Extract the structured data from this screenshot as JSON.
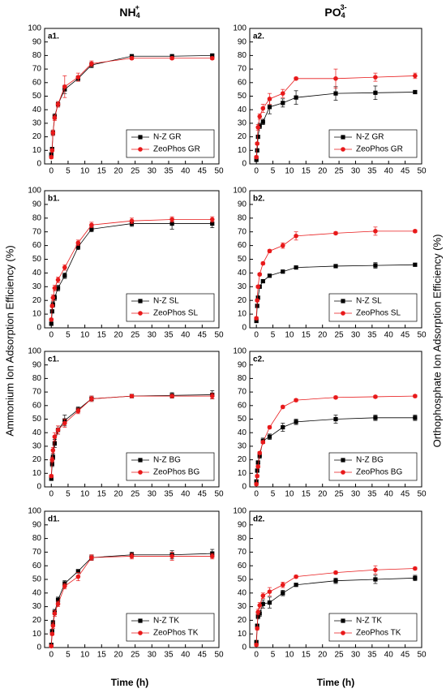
{
  "column_titles": [
    {
      "text": "NH",
      "sub": "4",
      "sup": "+"
    },
    {
      "text": "PO",
      "sub": "4",
      "sup": "3-"
    }
  ],
  "y_labels": [
    "Ammonium Ion Adsorption Efficiency (%)",
    "Orthophosphate Ion Adsorption Efficiency (%)"
  ],
  "x_label": "Time (h)",
  "chart_data": [
    {
      "type": "line",
      "label": "a1.",
      "x": [
        0,
        0.25,
        0.5,
        1,
        2,
        4,
        8,
        12,
        24,
        36,
        48
      ],
      "xlim": [
        -2,
        50
      ],
      "xticks": [
        0,
        5,
        10,
        15,
        20,
        25,
        30,
        35,
        40,
        45,
        50
      ],
      "ylim": [
        0,
        100
      ],
      "yticks": [
        0,
        10,
        20,
        30,
        40,
        50,
        60,
        70,
        80,
        90,
        100
      ],
      "legend": "lower right",
      "series": [
        {
          "name": "N-Z  GR",
          "color": "#000000",
          "marker": "square",
          "values": [
            7,
            11,
            23,
            35,
            44,
            55,
            63,
            73,
            79.5,
            79.5,
            80
          ],
          "errors": [
            1,
            1,
            2,
            2,
            2,
            3,
            2,
            2,
            1,
            1,
            1
          ]
        },
        {
          "name": "ZeoPhos GR",
          "color": "#e8191a",
          "marker": "circle",
          "values": [
            5,
            10,
            23,
            34,
            44,
            57,
            64,
            74,
            78,
            78,
            78
          ],
          "errors": [
            1,
            1,
            2,
            2,
            2,
            8,
            3,
            2,
            1,
            1,
            1
          ]
        }
      ]
    },
    {
      "type": "line",
      "label": "a2.",
      "x": [
        0,
        0.25,
        0.5,
        1,
        2,
        4,
        8,
        12,
        24,
        36,
        48
      ],
      "xlim": [
        -2,
        50
      ],
      "xticks": [
        0,
        5,
        10,
        15,
        20,
        25,
        30,
        35,
        40,
        45,
        50
      ],
      "ylim": [
        0,
        100
      ],
      "yticks": [
        0,
        10,
        20,
        30,
        40,
        50,
        60,
        70,
        80,
        90,
        100
      ],
      "legend": "lower right",
      "series": [
        {
          "name": "N-Z  GR",
          "color": "#000000",
          "marker": "square",
          "values": [
            3,
            10,
            20,
            28,
            31,
            42,
            45,
            49,
            52,
            52.5,
            53
          ],
          "errors": [
            1,
            1,
            1,
            2,
            2,
            5,
            3,
            5,
            5,
            5,
            1
          ]
        },
        {
          "name": "ZeoPhos GR",
          "color": "#e8191a",
          "marker": "circle",
          "values": [
            5,
            15,
            27,
            35,
            41,
            48,
            52,
            63,
            63,
            64,
            65
          ],
          "errors": [
            1,
            1,
            2,
            2,
            3,
            4,
            3,
            1,
            7,
            3,
            2
          ]
        }
      ]
    },
    {
      "type": "line",
      "label": "b1.",
      "x": [
        0,
        0.25,
        0.5,
        1,
        2,
        4,
        8,
        12,
        24,
        36,
        48
      ],
      "xlim": [
        -2,
        50
      ],
      "xticks": [
        0,
        5,
        10,
        15,
        20,
        25,
        30,
        35,
        40,
        45,
        50
      ],
      "ylim": [
        0,
        100
      ],
      "yticks": [
        0,
        10,
        20,
        30,
        40,
        50,
        60,
        70,
        80,
        90,
        100
      ],
      "legend": "lower right",
      "series": [
        {
          "name": "N-Z SL",
          "color": "#000000",
          "marker": "square",
          "values": [
            3,
            12,
            17,
            22,
            29,
            38,
            59,
            72,
            76,
            76,
            76
          ],
          "errors": [
            1,
            1,
            2,
            2,
            2,
            2,
            2,
            2,
            2,
            4,
            3
          ]
        },
        {
          "name": "ZeoPhos SL",
          "color": "#e8191a",
          "marker": "circle",
          "values": [
            6,
            16,
            22,
            29,
            35,
            44,
            62,
            75,
            78,
            79,
            79
          ],
          "errors": [
            1,
            1,
            2,
            2,
            2,
            2,
            2,
            2,
            2,
            2,
            2
          ]
        }
      ]
    },
    {
      "type": "line",
      "label": "b2.",
      "x": [
        0,
        0.25,
        0.5,
        1,
        2,
        4,
        8,
        12,
        24,
        36,
        48
      ],
      "xlim": [
        -2,
        50
      ],
      "xticks": [
        0,
        5,
        10,
        15,
        20,
        25,
        30,
        35,
        40,
        45,
        50
      ],
      "ylim": [
        0,
        100
      ],
      "yticks": [
        0,
        10,
        20,
        30,
        40,
        50,
        60,
        70,
        80,
        90,
        100
      ],
      "legend": "lower right",
      "series": [
        {
          "name": "N-Z SL",
          "color": "#000000",
          "marker": "square",
          "values": [
            5,
            16,
            22,
            30,
            34,
            38,
            41,
            44,
            45,
            45.5,
            46
          ],
          "errors": [
            1,
            1,
            1,
            1,
            1,
            1,
            1,
            1,
            1,
            2,
            1
          ]
        },
        {
          "name": "ZeoPhos SL",
          "color": "#e8191a",
          "marker": "circle",
          "values": [
            7,
            20,
            30,
            39,
            47,
            56,
            60,
            67,
            69,
            70.5,
            70.5
          ],
          "errors": [
            1,
            1,
            1,
            1,
            1,
            1,
            2,
            3,
            1,
            3,
            1
          ]
        }
      ]
    },
    {
      "type": "line",
      "label": "c1.",
      "x": [
        0,
        0.25,
        0.5,
        1,
        2,
        4,
        8,
        12,
        24,
        36,
        48
      ],
      "xlim": [
        -2,
        50
      ],
      "xticks": [
        0,
        5,
        10,
        15,
        20,
        25,
        30,
        35,
        40,
        45,
        50
      ],
      "ylim": [
        0,
        100
      ],
      "yticks": [
        0,
        10,
        20,
        30,
        40,
        50,
        60,
        70,
        80,
        90,
        100
      ],
      "legend": "lower right",
      "series": [
        {
          "name": "N-Z  BG",
          "color": "#000000",
          "marker": "square",
          "values": [
            6,
            17,
            22,
            32,
            42,
            49,
            57,
            65,
            67,
            67.5,
            68
          ],
          "errors": [
            1,
            2,
            2,
            3,
            3,
            4,
            2,
            2,
            1,
            2,
            3
          ]
        },
        {
          "name": "ZeoPhos BG",
          "color": "#e8191a",
          "marker": "circle",
          "values": [
            8,
            20,
            27,
            37,
            42,
            47,
            56,
            65,
            67,
            67,
            67
          ],
          "errors": [
            1,
            2,
            2,
            3,
            3,
            3,
            2,
            2,
            1,
            1,
            2
          ]
        }
      ]
    },
    {
      "type": "line",
      "label": "c2.",
      "x": [
        0,
        0.25,
        0.5,
        1,
        2,
        4,
        8,
        12,
        24,
        36,
        48
      ],
      "xlim": [
        -2,
        50
      ],
      "xticks": [
        0,
        5,
        10,
        15,
        20,
        25,
        30,
        35,
        40,
        45,
        50
      ],
      "ylim": [
        0,
        100
      ],
      "yticks": [
        0,
        10,
        20,
        30,
        40,
        50,
        60,
        70,
        80,
        90,
        100
      ],
      "legend": "lower right",
      "series": [
        {
          "name": "N-Z  BG",
          "color": "#000000",
          "marker": "square",
          "values": [
            4,
            12,
            18,
            23,
            34,
            37,
            44,
            48,
            50,
            51,
            51
          ],
          "errors": [
            1,
            1,
            1,
            2,
            2,
            2,
            3,
            2,
            3,
            2,
            2
          ]
        },
        {
          "name": "ZeoPhos BG",
          "color": "#e8191a",
          "marker": "circle",
          "values": [
            2,
            8,
            15,
            25,
            33,
            44,
            59,
            64,
            66,
            66.5,
            67
          ],
          "errors": [
            1,
            1,
            1,
            1,
            1,
            1,
            1,
            1,
            1,
            1,
            1
          ]
        }
      ]
    },
    {
      "type": "line",
      "label": "d1.",
      "x": [
        0,
        0.25,
        0.5,
        1,
        2,
        4,
        8,
        12,
        24,
        36,
        48
      ],
      "xlim": [
        -2,
        50
      ],
      "xticks": [
        0,
        5,
        10,
        15,
        20,
        25,
        30,
        35,
        40,
        45,
        50
      ],
      "ylim": [
        0,
        100
      ],
      "yticks": [
        0,
        10,
        20,
        30,
        40,
        50,
        60,
        70,
        80,
        90,
        100
      ],
      "legend": "lower right",
      "series": [
        {
          "name": "N-Z  TK",
          "color": "#000000",
          "marker": "square",
          "values": [
            2,
            12,
            18,
            26,
            35,
            47,
            56,
            66,
            68,
            68,
            69
          ],
          "errors": [
            1,
            1,
            2,
            2,
            2,
            2,
            1,
            2,
            2,
            3,
            3
          ]
        },
        {
          "name": "ZeoPhos TK",
          "color": "#e8191a",
          "marker": "circle",
          "values": [
            1,
            10,
            16,
            25,
            32,
            45,
            52,
            66,
            67,
            67,
            67
          ],
          "errors": [
            1,
            1,
            2,
            2,
            2,
            2,
            3,
            2,
            2,
            3,
            2
          ]
        }
      ]
    },
    {
      "type": "line",
      "label": "d2.",
      "x": [
        0,
        0.25,
        0.5,
        1,
        2,
        4,
        8,
        12,
        24,
        36,
        48
      ],
      "xlim": [
        -2,
        50
      ],
      "xticks": [
        0,
        5,
        10,
        15,
        20,
        25,
        30,
        35,
        40,
        45,
        50
      ],
      "ylim": [
        0,
        100
      ],
      "yticks": [
        0,
        10,
        20,
        30,
        40,
        50,
        60,
        70,
        80,
        90,
        100
      ],
      "legend": "lower right",
      "series": [
        {
          "name": "N-Z  TK",
          "color": "#000000",
          "marker": "square",
          "values": [
            4,
            16,
            23,
            25,
            32,
            33,
            40,
            46,
            49,
            50,
            51
          ],
          "errors": [
            1,
            1,
            2,
            2,
            3,
            4,
            2,
            1,
            2,
            3,
            2
          ]
        },
        {
          "name": "ZeoPhos TK",
          "color": "#e8191a",
          "marker": "circle",
          "values": [
            2,
            14,
            26,
            31,
            38,
            41,
            46,
            52,
            55,
            57,
            58
          ],
          "errors": [
            1,
            1,
            2,
            2,
            2,
            3,
            2,
            1,
            1,
            3,
            1
          ]
        }
      ]
    }
  ]
}
